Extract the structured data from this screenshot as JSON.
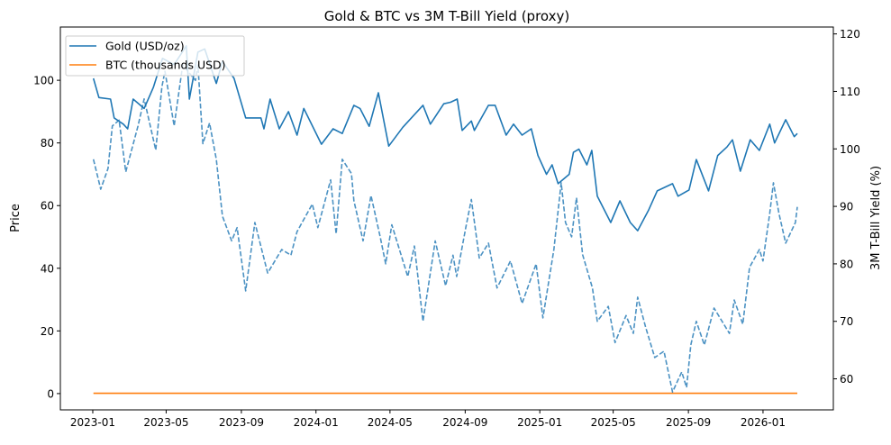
{
  "chart_data": {
    "type": "line",
    "title": "Gold & BTC vs 3M T-Bill Yield (proxy)",
    "xlabel": "",
    "ylabel": "Price",
    "ylabel_right": "3M T-Bill Yield (%)",
    "xlim": [
      "2022-11-09",
      "2026-04-26"
    ],
    "ylim": [
      -5.2,
      117.0
    ],
    "ylim_right": [
      54.6,
      121.2
    ],
    "x_ticks": [
      "2023-01",
      "2023-05",
      "2023-09",
      "2024-01",
      "2024-05",
      "2024-09",
      "2025-01",
      "2025-05",
      "2025-09",
      "2026-01"
    ],
    "y_ticks": [
      0,
      20,
      40,
      60,
      80,
      100
    ],
    "y_ticks_right": [
      60,
      70,
      80,
      90,
      100,
      110,
      120
    ],
    "grid": false,
    "legend_placement": "upper-left",
    "series": [
      {
        "name": "Gold (USD/oz)",
        "axis": "left",
        "color": "#1f77b4",
        "style": "solid",
        "points": [
          [
            "2023-01-02",
            100.6
          ],
          [
            "2023-01-11",
            94.5
          ],
          [
            "2023-01-30",
            94
          ],
          [
            "2023-02-05",
            88
          ],
          [
            "2023-02-20",
            86
          ],
          [
            "2023-02-27",
            84.5
          ],
          [
            "2023-03-08",
            94
          ],
          [
            "2023-03-26",
            91
          ],
          [
            "2023-04-10",
            97.7
          ],
          [
            "2023-04-25",
            107
          ],
          [
            "2023-05-14",
            105
          ],
          [
            "2023-06-03",
            111
          ],
          [
            "2023-06-08",
            94
          ],
          [
            "2023-06-22",
            109
          ],
          [
            "2023-07-03",
            110
          ],
          [
            "2023-07-22",
            99
          ],
          [
            "2023-08-01",
            106
          ],
          [
            "2023-08-20",
            100.6
          ],
          [
            "2023-09-08",
            88
          ],
          [
            "2023-10-03",
            88
          ],
          [
            "2023-10-08",
            84.5
          ],
          [
            "2023-10-18",
            94
          ],
          [
            "2023-11-02",
            84.5
          ],
          [
            "2023-11-17",
            90
          ],
          [
            "2023-12-01",
            82.5
          ],
          [
            "2023-12-12",
            91
          ],
          [
            "2024-01-10",
            79.6
          ],
          [
            "2024-01-29",
            84.5
          ],
          [
            "2024-02-13",
            83
          ],
          [
            "2024-03-03",
            92
          ],
          [
            "2024-03-13",
            91
          ],
          [
            "2024-03-28",
            85.3
          ],
          [
            "2024-04-12",
            96
          ],
          [
            "2024-04-29",
            79
          ],
          [
            "2024-05-22",
            85
          ],
          [
            "2024-06-24",
            92
          ],
          [
            "2024-07-06",
            86
          ],
          [
            "2024-07-28",
            92.5
          ],
          [
            "2024-08-08",
            93
          ],
          [
            "2024-08-19",
            94
          ],
          [
            "2024-08-27",
            84
          ],
          [
            "2024-09-11",
            87
          ],
          [
            "2024-09-16",
            84
          ],
          [
            "2024-10-09",
            92
          ],
          [
            "2024-10-20",
            92
          ],
          [
            "2024-11-07",
            82.5
          ],
          [
            "2024-11-19",
            86
          ],
          [
            "2024-12-03",
            82.5
          ],
          [
            "2024-12-18",
            84.5
          ],
          [
            "2024-12-29",
            76
          ],
          [
            "2025-01-12",
            70
          ],
          [
            "2025-01-21",
            73
          ],
          [
            "2025-01-31",
            67
          ],
          [
            "2025-02-18",
            70
          ],
          [
            "2025-02-25",
            77
          ],
          [
            "2025-03-06",
            78
          ],
          [
            "2025-03-19",
            73
          ],
          [
            "2025-03-27",
            77.6
          ],
          [
            "2025-04-05",
            63
          ],
          [
            "2025-04-27",
            54.6
          ],
          [
            "2025-05-12",
            61.5
          ],
          [
            "2025-05-29",
            54.6
          ],
          [
            "2025-06-10",
            52
          ],
          [
            "2025-06-28",
            58.6
          ],
          [
            "2025-07-12",
            64.7
          ],
          [
            "2025-08-06",
            67
          ],
          [
            "2025-08-15",
            63
          ],
          [
            "2025-09-02",
            65
          ],
          [
            "2025-09-14",
            74.7
          ],
          [
            "2025-10-04",
            64.7
          ],
          [
            "2025-10-19",
            76
          ],
          [
            "2025-11-03",
            78.7
          ],
          [
            "2025-11-12",
            81
          ],
          [
            "2025-11-25",
            71
          ],
          [
            "2025-12-11",
            81
          ],
          [
            "2025-12-26",
            77.6
          ],
          [
            "2026-01-12",
            86
          ],
          [
            "2026-01-20",
            80
          ],
          [
            "2026-02-07",
            87.4
          ],
          [
            "2026-02-21",
            82
          ],
          [
            "2026-02-26",
            83
          ]
        ]
      },
      {
        "name": "BTC (thousands USD)",
        "axis": "left",
        "color": "#ff7f0e",
        "style": "solid",
        "points": [
          [
            "2023-01-02",
            0.1
          ],
          [
            "2026-02-26",
            0.1
          ]
        ]
      },
      {
        "axis": "right",
        "color": "#1f77b4",
        "style": "dashed",
        "points": [
          [
            "2023-01-02",
            98.2
          ],
          [
            "2023-01-14",
            93
          ],
          [
            "2023-01-26",
            96.6
          ],
          [
            "2023-02-02",
            104
          ],
          [
            "2023-02-13",
            105
          ],
          [
            "2023-02-24",
            96
          ],
          [
            "2023-03-07",
            100.4
          ],
          [
            "2023-03-16",
            104
          ],
          [
            "2023-03-26",
            108.7
          ],
          [
            "2023-04-14",
            99.8
          ],
          [
            "2023-04-24",
            110.8
          ],
          [
            "2023-04-29",
            113.5
          ],
          [
            "2023-05-14",
            104
          ],
          [
            "2023-05-28",
            114.6
          ],
          [
            "2023-06-18",
            111.9
          ],
          [
            "2023-06-22",
            114.6
          ],
          [
            "2023-06-30",
            100.9
          ],
          [
            "2023-07-11",
            104.5
          ],
          [
            "2023-07-22",
            98.2
          ],
          [
            "2023-08-01",
            88.3
          ],
          [
            "2023-08-16",
            84
          ],
          [
            "2023-08-25",
            86.3
          ],
          [
            "2023-09-08",
            75.3
          ],
          [
            "2023-09-23",
            87.2
          ],
          [
            "2023-10-14",
            78.4
          ],
          [
            "2023-11-06",
            82.5
          ],
          [
            "2023-11-21",
            81.5
          ],
          [
            "2023-12-01",
            85.6
          ],
          [
            "2023-12-26",
            90.4
          ],
          [
            "2024-01-04",
            86.3
          ],
          [
            "2024-01-25",
            94.6
          ],
          [
            "2024-02-03",
            85.2
          ],
          [
            "2024-02-13",
            98.2
          ],
          [
            "2024-02-28",
            95.7
          ],
          [
            "2024-03-03",
            91
          ],
          [
            "2024-03-18",
            84
          ],
          [
            "2024-03-31",
            91.9
          ],
          [
            "2024-04-15",
            84.7
          ],
          [
            "2024-04-24",
            80
          ],
          [
            "2024-05-04",
            86.8
          ],
          [
            "2024-05-30",
            77.8
          ],
          [
            "2024-06-10",
            83.1
          ],
          [
            "2024-06-24",
            70
          ],
          [
            "2024-07-14",
            84
          ],
          [
            "2024-07-31",
            76.2
          ],
          [
            "2024-08-12",
            81.5
          ],
          [
            "2024-08-18",
            77.8
          ],
          [
            "2024-09-02",
            86.3
          ],
          [
            "2024-09-11",
            91.2
          ],
          [
            "2024-09-24",
            81
          ],
          [
            "2024-10-09",
            83.6
          ],
          [
            "2024-10-23",
            75.8
          ],
          [
            "2024-11-14",
            80.5
          ],
          [
            "2024-12-03",
            73.1
          ],
          [
            "2024-12-26",
            80
          ],
          [
            "2025-01-06",
            70.6
          ],
          [
            "2025-01-24",
            82.5
          ],
          [
            "2025-02-05",
            94.1
          ],
          [
            "2025-02-12",
            87.2
          ],
          [
            "2025-02-22",
            84.7
          ],
          [
            "2025-03-02",
            91.5
          ],
          [
            "2025-03-12",
            81.6
          ],
          [
            "2025-03-28",
            75.8
          ],
          [
            "2025-04-05",
            70
          ],
          [
            "2025-04-23",
            72.6
          ],
          [
            "2025-05-04",
            66.3
          ],
          [
            "2025-05-22",
            71
          ],
          [
            "2025-06-03",
            67.9
          ],
          [
            "2025-06-10",
            74.2
          ],
          [
            "2025-06-23",
            69
          ],
          [
            "2025-07-08",
            63.7
          ],
          [
            "2025-07-23",
            64.8
          ],
          [
            "2025-08-06",
            57.7
          ],
          [
            "2025-08-21",
            61.2
          ],
          [
            "2025-08-29",
            58.5
          ],
          [
            "2025-09-05",
            65.9
          ],
          [
            "2025-09-14",
            70
          ],
          [
            "2025-09-27",
            65.9
          ],
          [
            "2025-10-13",
            72.3
          ],
          [
            "2025-11-07",
            67.9
          ],
          [
            "2025-11-15",
            73.7
          ],
          [
            "2025-11-29",
            69.5
          ],
          [
            "2025-12-10",
            79.4
          ],
          [
            "2025-12-26",
            82.5
          ],
          [
            "2026-01-01",
            80.5
          ],
          [
            "2026-01-12",
            88.8
          ],
          [
            "2026-01-18",
            94.1
          ],
          [
            "2026-01-27",
            88.8
          ],
          [
            "2026-02-07",
            83.6
          ],
          [
            "2026-02-23",
            87.2
          ],
          [
            "2026-02-26",
            89.9
          ]
        ]
      }
    ]
  }
}
